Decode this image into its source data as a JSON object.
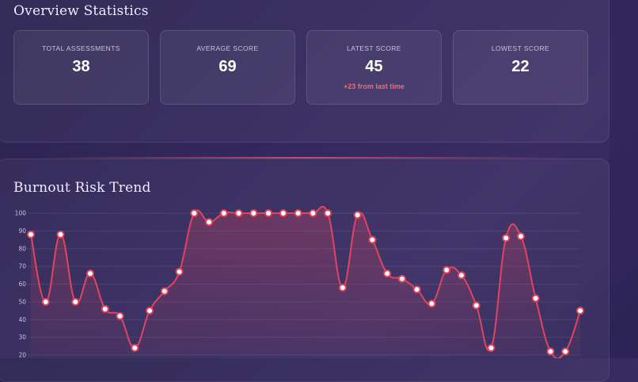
{
  "overview": {
    "title": "Overview Statistics",
    "cards": [
      {
        "label": "TOTAL ASSESSMENTS",
        "value": "38"
      },
      {
        "label": "AVERAGE SCORE",
        "value": "69"
      },
      {
        "label": "LATEST SCORE",
        "value": "45",
        "delta": "+23 from last time"
      },
      {
        "label": "LOWEST SCORE",
        "value": "22"
      }
    ]
  },
  "trend": {
    "title": "Burnout Risk Trend"
  },
  "colors": {
    "line": "#e0455f",
    "point_fill": "#ffffff",
    "delta": "#ef6a7f"
  },
  "chart_data": {
    "type": "line",
    "title": "Burnout Risk Trend",
    "xlabel": "",
    "ylabel": "",
    "ylim": [
      20,
      100
    ],
    "yticks": [
      100,
      90,
      80,
      70,
      60,
      50,
      40,
      30,
      20
    ],
    "grid": true,
    "values": [
      88,
      50,
      88,
      50,
      66,
      46,
      42,
      24,
      45,
      56,
      67,
      100,
      95,
      100,
      100,
      100,
      100,
      100,
      100,
      100,
      100,
      58,
      99,
      85,
      66,
      63,
      57,
      49,
      68,
      65,
      48,
      24,
      86,
      87,
      52,
      22,
      22,
      45
    ]
  }
}
